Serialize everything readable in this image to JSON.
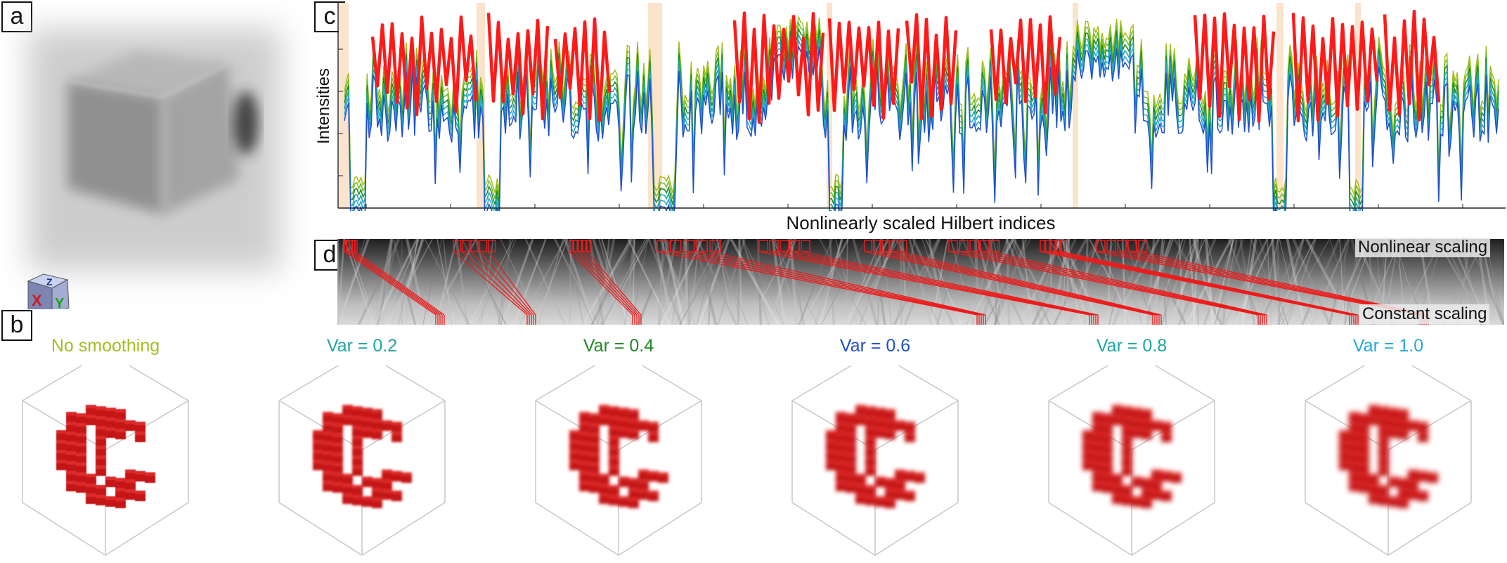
{
  "panels": {
    "a": "a",
    "b": "b",
    "c": "c",
    "d": "d"
  },
  "axes": {
    "x_label": "Nonlinearly scaled Hilbert indices",
    "y_label": "Intensities"
  },
  "panel_d": {
    "top_label": "Nonlinear scaling",
    "bottom_label": "Constant scaling"
  },
  "orientation_cube": {
    "x": "X",
    "y": "Y",
    "z": "Z"
  },
  "smoothing": [
    {
      "label": "No smoothing",
      "color": "#a6bd1d"
    },
    {
      "label": "Var = 0.2",
      "color": "#1fa5a0"
    },
    {
      "label": "Var = 0.4",
      "color": "#1e8a22"
    },
    {
      "label": "Var = 0.6",
      "color": "#1e50c8"
    },
    {
      "label": "Var = 0.8",
      "color": "#1fa5a0"
    },
    {
      "label": "Var = 1.0",
      "color": "#28a7d8"
    }
  ],
  "colors": {
    "highlight": "#ff1a1a",
    "voxel": "#c41414",
    "band": "#fbe3cc"
  }
}
